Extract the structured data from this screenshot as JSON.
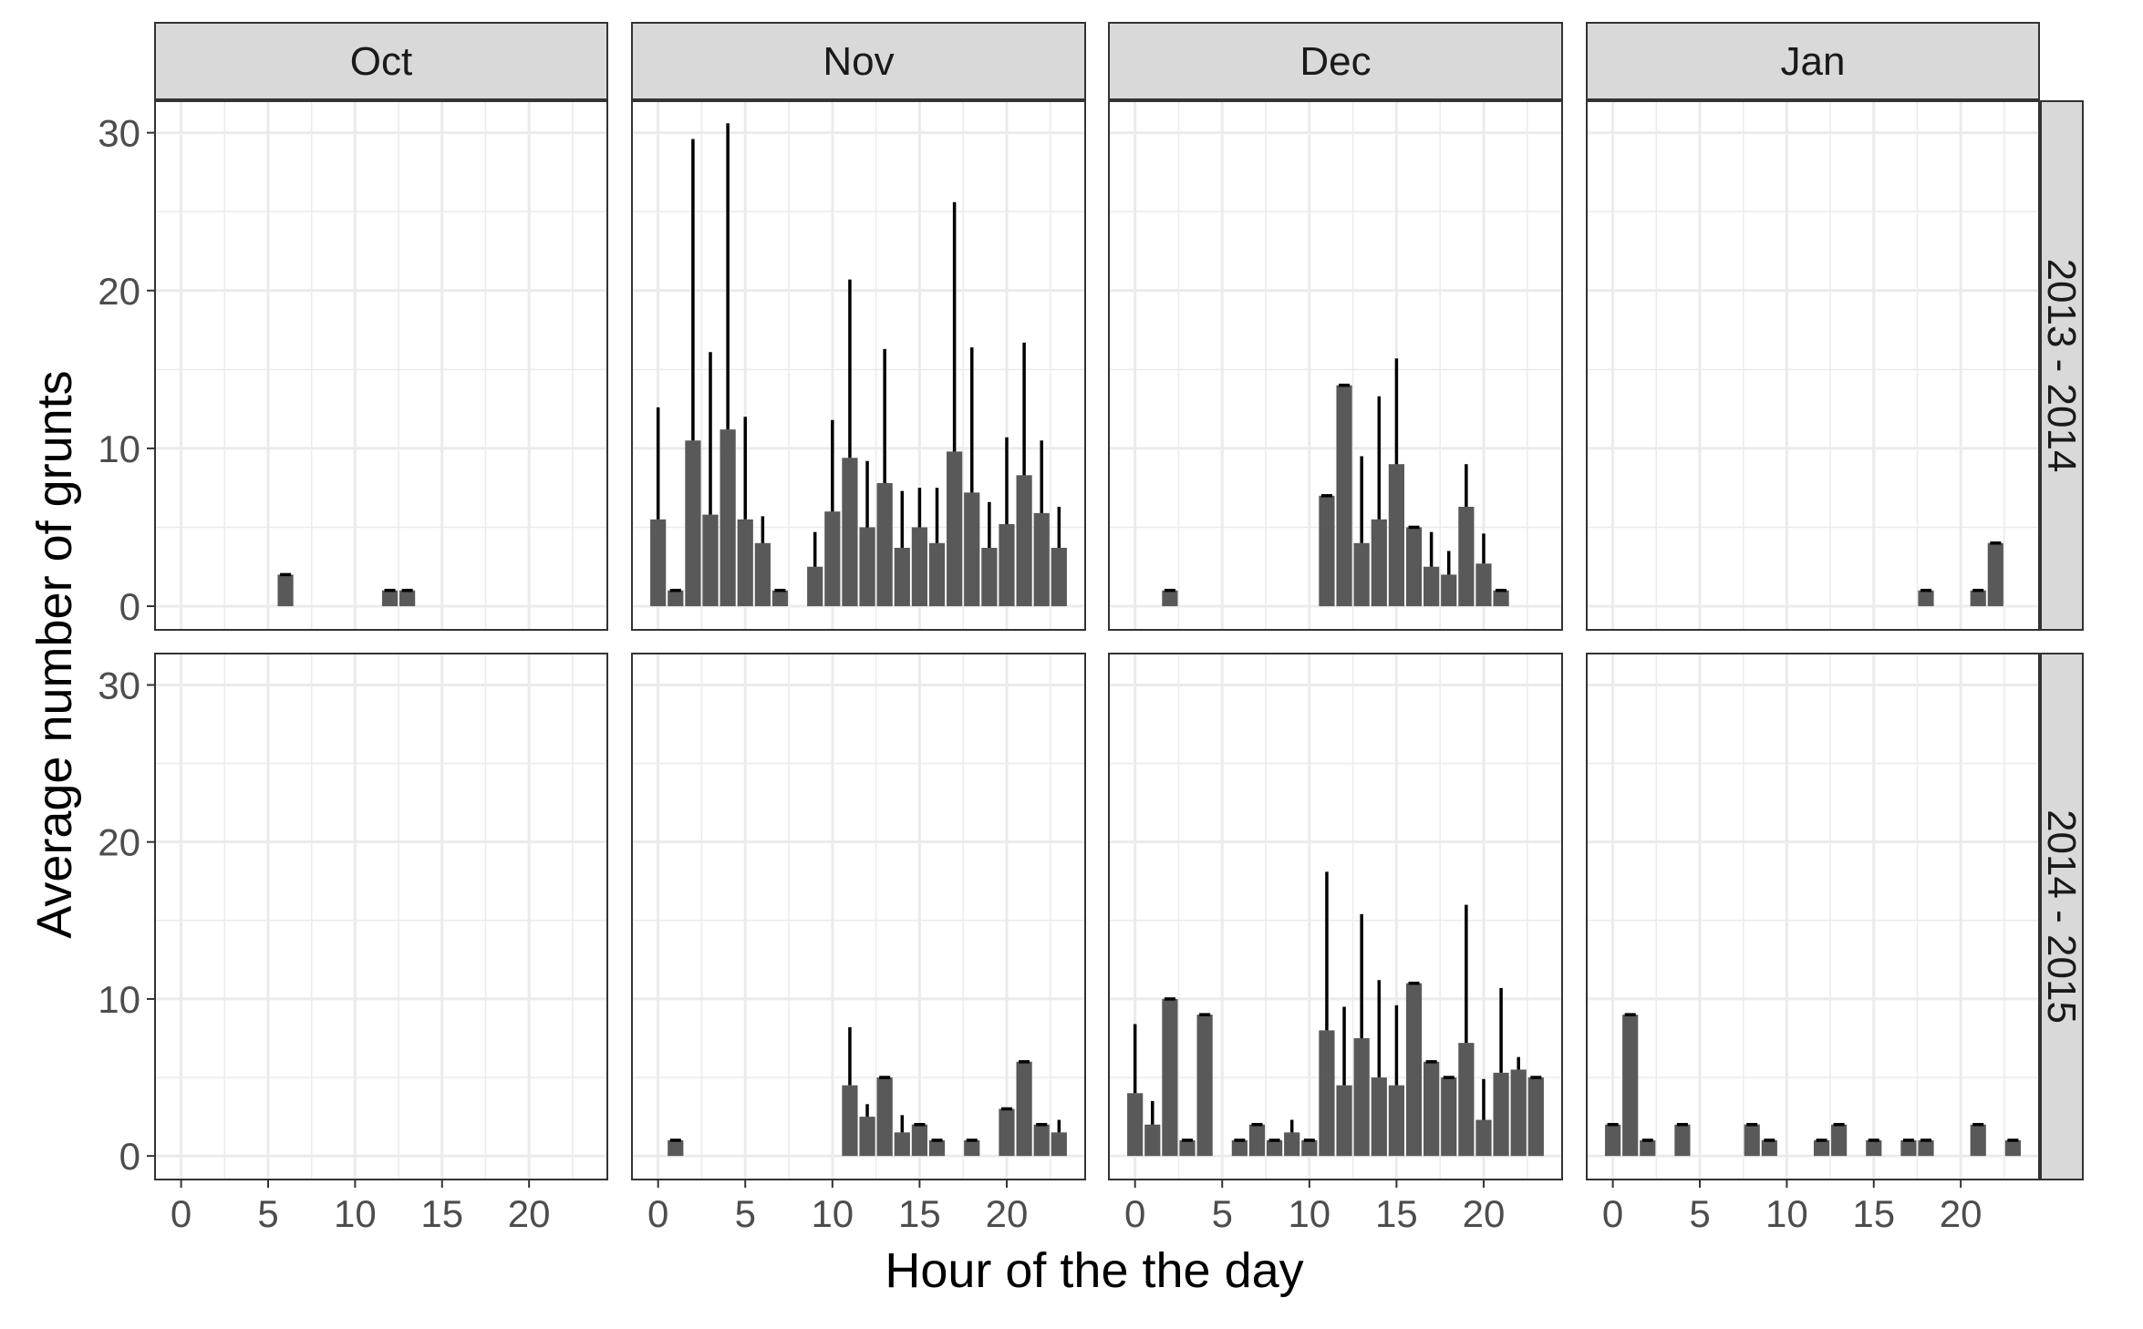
{
  "chart_data": {
    "type": "bar",
    "xlabel": "Hour of the the day",
    "ylabel": "Average number of grunts",
    "xlim": [
      -1.5,
      24.5
    ],
    "ylim": [
      -1.5,
      32
    ],
    "x_ticks": [
      0,
      5,
      10,
      15,
      20
    ],
    "y_ticks": [
      0,
      10,
      20,
      30
    ],
    "grid": true,
    "colors": {
      "bar": "#595959",
      "error_bar": "#000000",
      "strip_fill": "#d9d9d9",
      "grid": "#ebebeb",
      "text": "#4d4d4d"
    },
    "columns": [
      "Oct",
      "Nov",
      "Dec",
      "Jan"
    ],
    "rows": [
      "2013 - 2014",
      "2014 - 2015"
    ],
    "panels": [
      {
        "row": "2013 - 2014",
        "column": "Oct",
        "bars": [
          [
            6,
            2,
            2
          ],
          [
            12,
            1,
            1
          ],
          [
            13,
            1,
            1
          ]
        ]
      },
      {
        "row": "2013 - 2014",
        "column": "Nov",
        "bars": [
          [
            0,
            5.5,
            12.6
          ],
          [
            1,
            1,
            1
          ],
          [
            2,
            10.5,
            29.6
          ],
          [
            3,
            5.8,
            16.1
          ],
          [
            4,
            11.2,
            30.6
          ],
          [
            5,
            5.5,
            12
          ],
          [
            6,
            4,
            5.7
          ],
          [
            7,
            1,
            1
          ],
          [
            9,
            2.5,
            4.7
          ],
          [
            10,
            6,
            11.8
          ],
          [
            11,
            9.4,
            20.7
          ],
          [
            12,
            5,
            9.2
          ],
          [
            13,
            7.8,
            16.3
          ],
          [
            14,
            3.7,
            7.3
          ],
          [
            15,
            5,
            7.5
          ],
          [
            16,
            4,
            7.5
          ],
          [
            17,
            9.8,
            25.6
          ],
          [
            18,
            7.2,
            16.4
          ],
          [
            19,
            3.7,
            6.6
          ],
          [
            20,
            5.2,
            10.7
          ],
          [
            21,
            8.3,
            16.7
          ],
          [
            22,
            5.9,
            10.5
          ],
          [
            23,
            3.7,
            6.3
          ]
        ]
      },
      {
        "row": "2013 - 2014",
        "column": "Dec",
        "bars": [
          [
            2,
            1,
            1
          ],
          [
            11,
            7,
            7
          ],
          [
            12,
            14,
            14
          ],
          [
            13,
            4,
            9.5
          ],
          [
            14,
            5.5,
            13.3
          ],
          [
            15,
            9,
            15.7
          ],
          [
            16,
            5,
            5
          ],
          [
            17,
            2.5,
            4.7
          ],
          [
            18,
            2,
            3.5
          ],
          [
            19,
            6.3,
            9
          ],
          [
            20,
            2.7,
            4.6
          ],
          [
            21,
            1,
            1
          ]
        ]
      },
      {
        "row": "2013 - 2014",
        "column": "Jan",
        "bars": [
          [
            18,
            1,
            1
          ],
          [
            21,
            1,
            1
          ],
          [
            22,
            4,
            4
          ]
        ]
      },
      {
        "row": "2014 - 2015",
        "column": "Oct",
        "bars": []
      },
      {
        "row": "2014 - 2015",
        "column": "Nov",
        "bars": [
          [
            1,
            1,
            1
          ],
          [
            11,
            4.5,
            8.2
          ],
          [
            12,
            2.5,
            3.3
          ],
          [
            13,
            5,
            5
          ],
          [
            14,
            1.5,
            2.6
          ],
          [
            15,
            2,
            2
          ],
          [
            16,
            1,
            1
          ],
          [
            18,
            1,
            1
          ],
          [
            20,
            3,
            3
          ],
          [
            21,
            6,
            6
          ],
          [
            22,
            2,
            2
          ],
          [
            23,
            1.5,
            2.3
          ]
        ]
      },
      {
        "row": "2014 - 2015",
        "column": "Dec",
        "bars": [
          [
            0,
            4,
            8.4
          ],
          [
            1,
            2,
            3.5
          ],
          [
            2,
            10,
            10
          ],
          [
            3,
            1,
            1
          ],
          [
            4,
            9,
            9
          ],
          [
            6,
            1,
            1
          ],
          [
            7,
            2,
            2
          ],
          [
            8,
            1,
            1
          ],
          [
            9,
            1.5,
            2.3
          ],
          [
            10,
            1,
            1
          ],
          [
            11,
            8,
            18.1
          ],
          [
            12,
            4.5,
            9.5
          ],
          [
            13,
            7.5,
            15.4
          ],
          [
            14,
            5,
            11.2
          ],
          [
            15,
            4.5,
            9.6
          ],
          [
            16,
            11,
            11
          ],
          [
            17,
            6,
            6
          ],
          [
            18,
            5,
            5
          ],
          [
            19,
            7.2,
            16
          ],
          [
            20,
            2.3,
            4.9
          ],
          [
            21,
            5.3,
            10.7
          ],
          [
            22,
            5.5,
            6.3
          ],
          [
            23,
            5,
            5
          ]
        ]
      },
      {
        "row": "2014 - 2015",
        "column": "Jan",
        "bars": [
          [
            0,
            2,
            2
          ],
          [
            1,
            9,
            9
          ],
          [
            2,
            1,
            1
          ],
          [
            4,
            2,
            2
          ],
          [
            8,
            2,
            2
          ],
          [
            9,
            1,
            1
          ],
          [
            12,
            1,
            1
          ],
          [
            13,
            2,
            2
          ],
          [
            15,
            1,
            1
          ],
          [
            17,
            1,
            1
          ],
          [
            18,
            1,
            1
          ],
          [
            21,
            2,
            2
          ],
          [
            23,
            1,
            1
          ]
        ]
      }
    ]
  }
}
